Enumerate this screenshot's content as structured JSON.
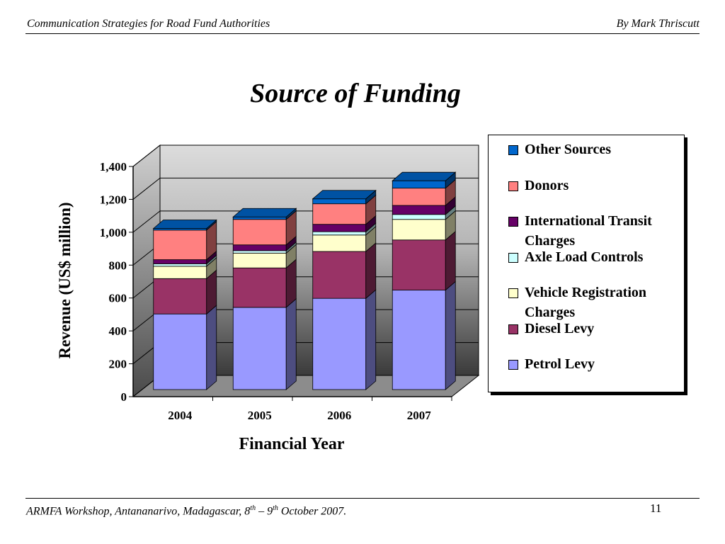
{
  "header": {
    "left": "Communication Strategies for Road Fund Authorities",
    "right": "By Mark Thriscutt"
  },
  "footer": {
    "prefix": "ARMFA Workshop, Antananarivo, Madagascar, 8",
    "sup1": "th",
    "dash": " – 9",
    "sup2": "th",
    "suffix": " October 2007.",
    "page": "11"
  },
  "chart_data": {
    "type": "bar",
    "stacked": true,
    "three_d": true,
    "title": "Source of Funding",
    "xlabel": "Financial Year",
    "ylabel": "Revenue (US$ million)",
    "ylim": [
      0,
      1400
    ],
    "yticks": [
      "0",
      "200",
      "400",
      "600",
      "800",
      "1,000",
      "1,200",
      "1,400"
    ],
    "categories": [
      "2004",
      "2005",
      "2006",
      "2007"
    ],
    "grid": true,
    "legend_position": "right",
    "series": [
      {
        "name": "Petrol Levy",
        "color": "#9999ff",
        "values": [
          460,
          500,
          555,
          605
        ]
      },
      {
        "name": "Diesel Levy",
        "color": "#993366",
        "values": [
          215,
          240,
          285,
          305
        ]
      },
      {
        "name": "Vehicle Registration Charges",
        "color": "#ffffcc",
        "values": [
          75,
          90,
          100,
          125
        ]
      },
      {
        "name": "Axle Load Controls",
        "color": "#ccffff",
        "values": [
          15,
          15,
          20,
          30
        ]
      },
      {
        "name": "International Transit Charges",
        "color": "#660066",
        "values": [
          25,
          35,
          45,
          55
        ]
      },
      {
        "name": "Donors",
        "color": "#ff8080",
        "values": [
          180,
          155,
          125,
          105
        ]
      },
      {
        "name": "Other Sources",
        "color": "#0066cc",
        "values": [
          10,
          15,
          30,
          45
        ]
      }
    ]
  }
}
